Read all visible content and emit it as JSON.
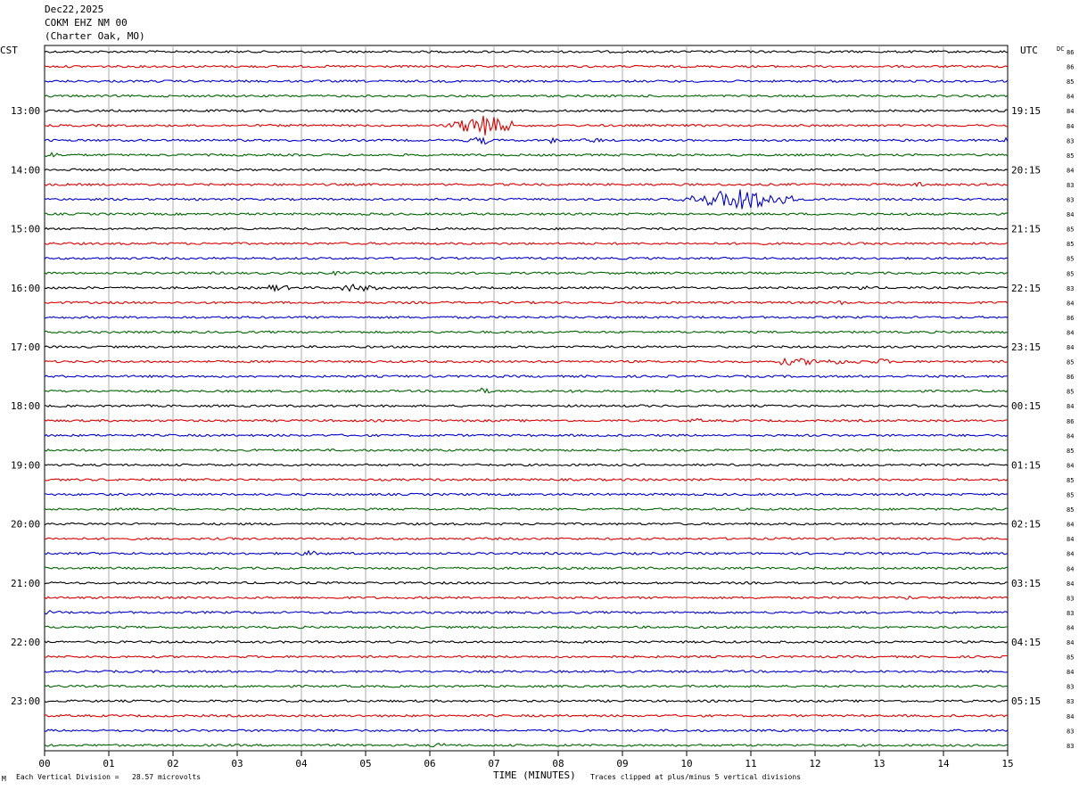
{
  "header": {
    "date": "Dec22,2025",
    "station": "COKM EHZ NM 00",
    "location": "(Charter Oak, MO)"
  },
  "footer": {
    "division_note": "Each Vertical Division =   28.57 microvolts",
    "clip_note": "Traces clipped at plus/minus 5 vertical divisions",
    "corner_mark": "M"
  },
  "chart_data": {
    "type": "line",
    "title": "",
    "xlabel": "TIME (MINUTES)",
    "x_range": [
      0,
      15
    ],
    "x_ticks": [
      "00",
      "01",
      "02",
      "03",
      "04",
      "05",
      "06",
      "07",
      "08",
      "09",
      "10",
      "11",
      "12",
      "13",
      "14",
      "15"
    ],
    "left_axis_label": "CST",
    "right_axis_label": "UTC",
    "dc_label": "DC",
    "row_interval_minutes": 15,
    "row_count": 48,
    "trace_colors": [
      "#000000",
      "#dd0000",
      "#0000cc",
      "#006400"
    ],
    "left_hour_labels": [
      "13:00",
      "14:00",
      "15:00",
      "16:00",
      "17:00",
      "18:00",
      "19:00",
      "20:00",
      "21:00",
      "22:00",
      "23:00"
    ],
    "right_hour_labels": [
      "19:15",
      "20:15",
      "21:15",
      "22:15",
      "23:15",
      "00:15",
      "01:15",
      "02:15",
      "03:15",
      "04:15",
      "05:15"
    ],
    "first_labeled_row": 4,
    "dc_offsets": [
      "86",
      "86",
      "85",
      "84",
      "84",
      "84",
      "83",
      "85",
      "84",
      "83",
      "83",
      "84",
      "85",
      "85",
      "85",
      "85",
      "83",
      "84",
      "86",
      "84",
      "84",
      "85",
      "86",
      "85",
      "84",
      "86",
      "84",
      "85",
      "84",
      "85",
      "85",
      "85",
      "84",
      "84",
      "84",
      "84",
      "84",
      "83",
      "83",
      "84",
      "84",
      "85",
      "84",
      "83",
      "83",
      "84",
      "83",
      "83"
    ],
    "grid": true,
    "events": [
      {
        "row": 5,
        "start_min": 6.2,
        "end_min": 7.3,
        "peak_min": 6.85,
        "amplitude_div": 5,
        "spike": true
      },
      {
        "row": 6,
        "start_min": 6.5,
        "end_min": 6.95,
        "peak_min": 6.85,
        "amplitude_div": 1.5
      },
      {
        "row": 6,
        "start_min": 7.85,
        "end_min": 8.0,
        "peak_min": 7.9,
        "amplitude_div": 1.2
      },
      {
        "row": 6,
        "start_min": 8.35,
        "end_min": 8.75,
        "peak_min": 8.55,
        "amplitude_div": 0.9
      },
      {
        "row": 6,
        "start_min": 14.85,
        "end_min": 15.0,
        "peak_min": 14.95,
        "amplitude_div": 1.8
      },
      {
        "row": 7,
        "start_min": 0.0,
        "end_min": 0.3,
        "peak_min": 0.1,
        "amplitude_div": 1.0
      },
      {
        "row": 9,
        "start_min": 13.55,
        "end_min": 13.8,
        "peak_min": 13.65,
        "amplitude_div": 1.1
      },
      {
        "row": 10,
        "start_min": 9.8,
        "end_min": 11.8,
        "peak_min": 10.85,
        "amplitude_div": 5,
        "spike": true
      },
      {
        "row": 11,
        "start_min": 13.35,
        "end_min": 13.5,
        "peak_min": 13.4,
        "amplitude_div": 0.6
      },
      {
        "row": 15,
        "start_min": 4.4,
        "end_min": 4.7,
        "peak_min": 4.55,
        "amplitude_div": 0.6
      },
      {
        "row": 16,
        "start_min": 3.5,
        "end_min": 3.9,
        "peak_min": 3.6,
        "amplitude_div": 1.3
      },
      {
        "row": 16,
        "start_min": 4.6,
        "end_min": 5.3,
        "peak_min": 4.8,
        "amplitude_div": 1.5
      },
      {
        "row": 16,
        "start_min": 12.6,
        "end_min": 12.9,
        "peak_min": 12.75,
        "amplitude_div": 1.0
      },
      {
        "row": 17,
        "start_min": 12.3,
        "end_min": 12.5,
        "peak_min": 12.4,
        "amplitude_div": 0.7
      },
      {
        "row": 21,
        "start_min": 11.4,
        "end_min": 13.2,
        "peak_min": 11.6,
        "amplitude_div": 1.2
      },
      {
        "row": 21,
        "start_min": 12.9,
        "end_min": 13.2,
        "peak_min": 13.05,
        "amplitude_div": 1.2
      },
      {
        "row": 23,
        "start_min": 6.6,
        "end_min": 7.0,
        "peak_min": 6.8,
        "amplitude_div": 1.1
      },
      {
        "row": 23,
        "start_min": 8.1,
        "end_min": 8.4,
        "peak_min": 8.25,
        "amplitude_div": 0.5
      },
      {
        "row": 25,
        "start_min": 10.0,
        "end_min": 10.3,
        "peak_min": 10.15,
        "amplitude_div": 0.6
      },
      {
        "row": 34,
        "start_min": 4.0,
        "end_min": 4.5,
        "peak_min": 4.1,
        "amplitude_div": 0.8
      },
      {
        "row": 37,
        "start_min": 13.3,
        "end_min": 13.6,
        "peak_min": 13.45,
        "amplitude_div": 0.6
      },
      {
        "row": 38,
        "start_min": 0.0,
        "end_min": 0.3,
        "peak_min": 0.1,
        "amplitude_div": 0.6
      },
      {
        "row": 47,
        "start_min": 6.0,
        "end_min": 6.4,
        "peak_min": 6.2,
        "amplitude_div": 0.8
      }
    ]
  }
}
